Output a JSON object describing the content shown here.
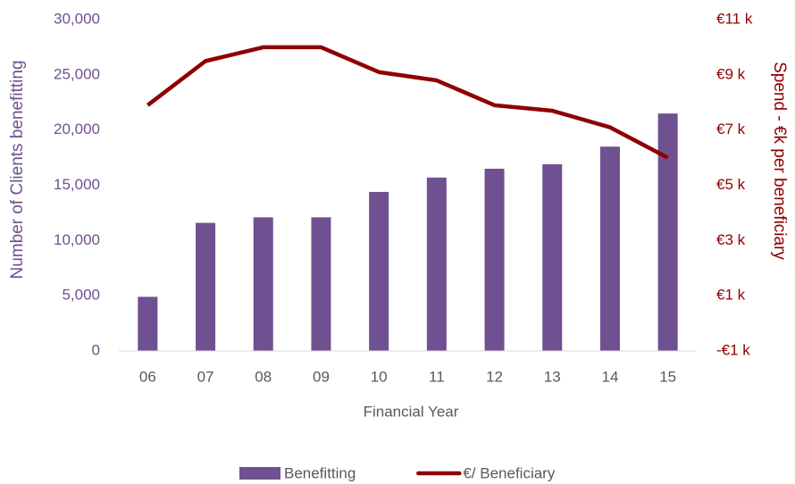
{
  "chart_data": {
    "type": "bar_line",
    "categories": [
      "06",
      "07",
      "08",
      "09",
      "10",
      "11",
      "12",
      "13",
      "14",
      "15"
    ],
    "series": [
      {
        "name": "Benefitting",
        "color": "#6f5090",
        "type": "bar",
        "values": [
          4900,
          11600,
          12100,
          12100,
          14400,
          15700,
          16500,
          16900,
          18500,
          21500
        ]
      },
      {
        "name": "€/ Beneficiary",
        "color": "#8f0000",
        "type": "line",
        "axis": "y2",
        "values": [
          7.9,
          9.5,
          10.0,
          10.0,
          9.1,
          8.8,
          7.9,
          7.7,
          7.1,
          6.0
        ]
      }
    ],
    "xlabel": "Financial Year",
    "ylabel": "Number of Clients benefitting",
    "y2label": "Spend - €k per beneficiary",
    "ylim": [
      0,
      30000
    ],
    "yticks": [
      0,
      {
        "value": 5000,
        "label": "5,000"
      },
      {
        "value": 10000,
        "label": "10,000"
      },
      {
        "value": 15000,
        "label": "15,000"
      },
      {
        "value": 20000,
        "label": "20,000"
      },
      {
        "value": 25000,
        "label": "25,000"
      },
      {
        "value": 30000,
        "label": "30,000"
      }
    ],
    "y2lim": [
      -1,
      11
    ],
    "y2ticks": [
      {
        "value": -1,
        "label": "-€1 k"
      },
      {
        "value": 1,
        "label": "€1 k"
      },
      {
        "value": 3,
        "label": "€3 k"
      },
      {
        "value": 5,
        "label": "€5 k"
      },
      {
        "value": 7,
        "label": "€7 k"
      },
      {
        "value": 9,
        "label": "€9 k"
      },
      {
        "value": 11,
        "label": "€11 k"
      }
    ],
    "legend": "bottom",
    "grid": false
  }
}
